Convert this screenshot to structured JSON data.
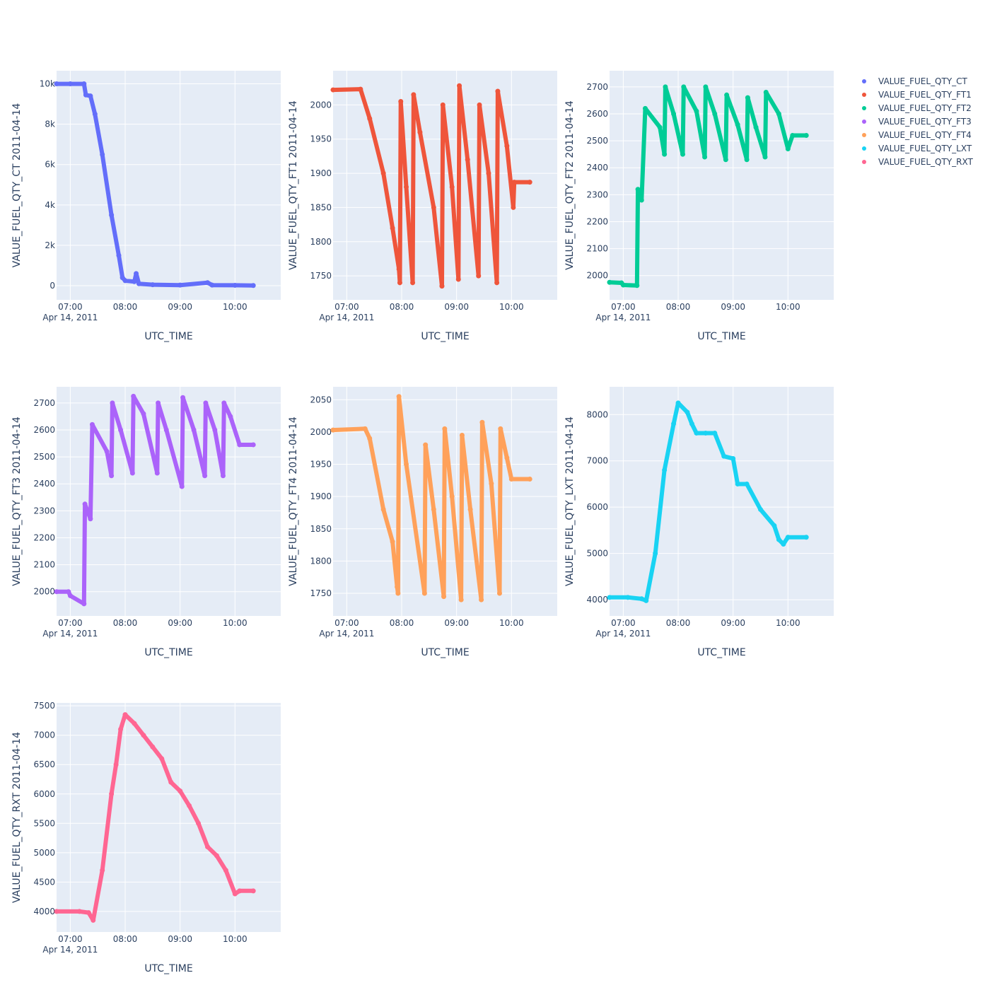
{
  "colors": {
    "plot_bg": "#E5ECF6",
    "grid": "#ffffff",
    "text": "#2a3f5f"
  },
  "chart_data": [
    {
      "type": "scatter",
      "series_name": "VALUE_FUEL_QTY_CT",
      "color": "#636EFA",
      "xlabel": "UTC_TIME",
      "ylabel": "VALUE_FUEL_QTY_CT 2011-04-14",
      "x_range": [
        "06:45",
        "10:50"
      ],
      "x_ticks": [
        "07:00",
        "08:00",
        "09:00",
        "10:00"
      ],
      "x_date_label": "Apr 14, 2011",
      "ylim": [
        -700,
        10650
      ],
      "y_ticks": [
        0,
        2000,
        4000,
        6000,
        8000,
        10000
      ],
      "y_tick_labels": [
        "0",
        "2k",
        "4k",
        "6k",
        "8k",
        "10k"
      ],
      "points": [
        [
          "06:45",
          10000
        ],
        [
          "07:00",
          10000
        ],
        [
          "07:15",
          10000
        ],
        [
          "07:17",
          9450
        ],
        [
          "07:22",
          9400
        ],
        [
          "07:27",
          8500
        ],
        [
          "07:35",
          6500
        ],
        [
          "07:45",
          3500
        ],
        [
          "07:53",
          1500
        ],
        [
          "07:57",
          400
        ],
        [
          "08:00",
          250
        ],
        [
          "08:10",
          200
        ],
        [
          "08:12",
          600
        ],
        [
          "08:15",
          100
        ],
        [
          "08:30",
          50
        ],
        [
          "09:00",
          30
        ],
        [
          "09:30",
          150
        ],
        [
          "09:35",
          30
        ],
        [
          "10:00",
          20
        ],
        [
          "10:20",
          10
        ]
      ]
    },
    {
      "type": "scatter",
      "series_name": "VALUE_FUEL_QTY_FT1",
      "color": "#EF553B",
      "xlabel": "UTC_TIME",
      "ylabel": "VALUE_FUEL_QTY_FT1 2011-04-14",
      "x_range": [
        "06:45",
        "10:50"
      ],
      "x_ticks": [
        "07:00",
        "08:00",
        "09:00",
        "10:00"
      ],
      "x_date_label": "Apr 14, 2011",
      "ylim": [
        1715,
        2050
      ],
      "y_ticks": [
        1750,
        1800,
        1850,
        1900,
        1950,
        2000
      ],
      "y_tick_labels": [
        "1750",
        "1800",
        "1850",
        "1900",
        "1950",
        "2000"
      ],
      "points": [
        [
          "06:45",
          2022
        ],
        [
          "07:15",
          2023
        ],
        [
          "07:25",
          1980
        ],
        [
          "07:40",
          1900
        ],
        [
          "07:50",
          1820
        ],
        [
          "07:57",
          1760
        ],
        [
          "07:58",
          1740
        ],
        [
          "07:59",
          2005
        ],
        [
          "08:05",
          1880
        ],
        [
          "08:12",
          1740
        ],
        [
          "08:13",
          2015
        ],
        [
          "08:20",
          1960
        ],
        [
          "08:35",
          1850
        ],
        [
          "08:44",
          1735
        ],
        [
          "08:45",
          2000
        ],
        [
          "08:55",
          1880
        ],
        [
          "09:02",
          1745
        ],
        [
          "09:03",
          2028
        ],
        [
          "09:12",
          1920
        ],
        [
          "09:24",
          1750
        ],
        [
          "09:25",
          2000
        ],
        [
          "09:35",
          1900
        ],
        [
          "09:44",
          1740
        ],
        [
          "09:45",
          2020
        ],
        [
          "09:55",
          1940
        ],
        [
          "10:02",
          1850
        ],
        [
          "10:03",
          1887
        ],
        [
          "10:20",
          1887
        ]
      ]
    },
    {
      "type": "scatter",
      "series_name": "VALUE_FUEL_QTY_FT2",
      "color": "#00CC96",
      "xlabel": "UTC_TIME",
      "ylabel": "VALUE_FUEL_QTY_FT2 2011-04-14",
      "x_range": [
        "06:45",
        "10:50"
      ],
      "x_ticks": [
        "07:00",
        "08:00",
        "09:00",
        "10:00"
      ],
      "x_date_label": "Apr 14, 2011",
      "ylim": [
        1910,
        2760
      ],
      "y_ticks": [
        2000,
        2100,
        2200,
        2300,
        2400,
        2500,
        2600,
        2700
      ],
      "y_tick_labels": [
        "2000",
        "2100",
        "2200",
        "2300",
        "2400",
        "2500",
        "2600",
        "2700"
      ],
      "points": [
        [
          "06:45",
          1975
        ],
        [
          "06:58",
          1973
        ],
        [
          "07:00",
          1965
        ],
        [
          "07:15",
          1963
        ],
        [
          "07:16",
          2320
        ],
        [
          "07:20",
          2280
        ],
        [
          "07:24",
          2620
        ],
        [
          "07:40",
          2550
        ],
        [
          "07:45",
          2450
        ],
        [
          "07:46",
          2700
        ],
        [
          "07:55",
          2600
        ],
        [
          "08:05",
          2450
        ],
        [
          "08:06",
          2700
        ],
        [
          "08:20",
          2610
        ],
        [
          "08:29",
          2440
        ],
        [
          "08:30",
          2700
        ],
        [
          "08:40",
          2600
        ],
        [
          "08:52",
          2430
        ],
        [
          "08:53",
          2670
        ],
        [
          "09:05",
          2560
        ],
        [
          "09:15",
          2430
        ],
        [
          "09:16",
          2660
        ],
        [
          "09:25",
          2550
        ],
        [
          "09:35",
          2440
        ],
        [
          "09:36",
          2680
        ],
        [
          "09:50",
          2600
        ],
        [
          "10:00",
          2470
        ],
        [
          "10:05",
          2520
        ],
        [
          "10:20",
          2520
        ]
      ]
    },
    {
      "type": "scatter",
      "series_name": "VALUE_FUEL_QTY_FT3",
      "color": "#AB63FA",
      "xlabel": "UTC_TIME",
      "ylabel": "VALUE_FUEL_QTY_FT3 2011-04-14",
      "x_range": [
        "06:45",
        "10:50"
      ],
      "x_ticks": [
        "07:00",
        "08:00",
        "09:00",
        "10:00"
      ],
      "x_date_label": "Apr 14, 2011",
      "ylim": [
        1910,
        2760
      ],
      "y_ticks": [
        2000,
        2100,
        2200,
        2300,
        2400,
        2500,
        2600,
        2700
      ],
      "y_tick_labels": [
        "2000",
        "2100",
        "2200",
        "2300",
        "2400",
        "2500",
        "2600",
        "2700"
      ],
      "points": [
        [
          "06:45",
          2000
        ],
        [
          "06:58",
          2000
        ],
        [
          "07:00",
          1985
        ],
        [
          "07:15",
          1955
        ],
        [
          "07:16",
          2325
        ],
        [
          "07:22",
          2270
        ],
        [
          "07:24",
          2620
        ],
        [
          "07:40",
          2520
        ],
        [
          "07:45",
          2430
        ],
        [
          "07:46",
          2700
        ],
        [
          "07:55",
          2600
        ],
        [
          "08:08",
          2440
        ],
        [
          "08:09",
          2725
        ],
        [
          "08:20",
          2660
        ],
        [
          "08:35",
          2440
        ],
        [
          "08:36",
          2700
        ],
        [
          "08:45",
          2600
        ],
        [
          "09:02",
          2390
        ],
        [
          "09:03",
          2720
        ],
        [
          "09:15",
          2600
        ],
        [
          "09:27",
          2430
        ],
        [
          "09:28",
          2700
        ],
        [
          "09:38",
          2600
        ],
        [
          "09:47",
          2430
        ],
        [
          "09:48",
          2700
        ],
        [
          "09:55",
          2650
        ],
        [
          "10:05",
          2545
        ],
        [
          "10:20",
          2545
        ]
      ]
    },
    {
      "type": "scatter",
      "series_name": "VALUE_FUEL_QTY_FT4",
      "color": "#FFA15A",
      "xlabel": "UTC_TIME",
      "ylabel": "VALUE_FUEL_QTY_FT4 2011-04-14",
      "x_range": [
        "06:45",
        "10:50"
      ],
      "x_ticks": [
        "07:00",
        "08:00",
        "09:00",
        "10:00"
      ],
      "x_date_label": "Apr 14, 2011",
      "ylim": [
        1715,
        2070
      ],
      "y_ticks": [
        1750,
        1800,
        1850,
        1900,
        1950,
        2000,
        2050
      ],
      "y_tick_labels": [
        "1750",
        "1800",
        "1850",
        "1900",
        "1950",
        "2000",
        "2050"
      ],
      "points": [
        [
          "06:45",
          2003
        ],
        [
          "07:20",
          2005
        ],
        [
          "07:25",
          1990
        ],
        [
          "07:40",
          1880
        ],
        [
          "07:50",
          1830
        ],
        [
          "07:55",
          1760
        ],
        [
          "07:56",
          1750
        ],
        [
          "07:57",
          2055
        ],
        [
          "08:05",
          1950
        ],
        [
          "08:25",
          1750
        ],
        [
          "08:26",
          1980
        ],
        [
          "08:35",
          1880
        ],
        [
          "08:46",
          1745
        ],
        [
          "08:47",
          2005
        ],
        [
          "08:55",
          1900
        ],
        [
          "09:05",
          1740
        ],
        [
          "09:06",
          1995
        ],
        [
          "09:15",
          1880
        ],
        [
          "09:27",
          1740
        ],
        [
          "09:28",
          2015
        ],
        [
          "09:38",
          1920
        ],
        [
          "09:47",
          1750
        ],
        [
          "09:48",
          2005
        ],
        [
          "09:55",
          1960
        ],
        [
          "10:00",
          1927
        ],
        [
          "10:20",
          1927
        ]
      ]
    },
    {
      "type": "scatter",
      "series_name": "VALUE_FUEL_QTY_LXT",
      "color": "#19D3F3",
      "xlabel": "UTC_TIME",
      "ylabel": "VALUE_FUEL_QTY_LXT 2011-04-14",
      "x_range": [
        "06:45",
        "10:50"
      ],
      "x_ticks": [
        "07:00",
        "08:00",
        "09:00",
        "10:00"
      ],
      "x_date_label": "Apr 14, 2011",
      "ylim": [
        3650,
        8600
      ],
      "y_ticks": [
        4000,
        5000,
        6000,
        7000,
        8000
      ],
      "y_tick_labels": [
        "4000",
        "5000",
        "6000",
        "7000",
        "8000"
      ],
      "points": [
        [
          "06:45",
          4050
        ],
        [
          "07:05",
          4050
        ],
        [
          "07:20",
          4020
        ],
        [
          "07:25",
          3980
        ],
        [
          "07:35",
          5000
        ],
        [
          "07:45",
          6800
        ],
        [
          "07:55",
          7800
        ],
        [
          "08:00",
          8250
        ],
        [
          "08:10",
          8050
        ],
        [
          "08:15",
          7800
        ],
        [
          "08:20",
          7600
        ],
        [
          "08:30",
          7600
        ],
        [
          "08:40",
          7600
        ],
        [
          "08:50",
          7100
        ],
        [
          "09:00",
          7050
        ],
        [
          "09:05",
          6500
        ],
        [
          "09:15",
          6500
        ],
        [
          "09:30",
          5950
        ],
        [
          "09:45",
          5600
        ],
        [
          "09:50",
          5300
        ],
        [
          "09:55",
          5200
        ],
        [
          "10:00",
          5350
        ],
        [
          "10:20",
          5350
        ]
      ]
    },
    {
      "type": "scatter",
      "series_name": "VALUE_FUEL_QTY_RXT",
      "color": "#FF6692",
      "xlabel": "UTC_TIME",
      "ylabel": "VALUE_FUEL_QTY_RXT 2011-04-14",
      "x_range": [
        "06:45",
        "10:50"
      ],
      "x_ticks": [
        "07:00",
        "08:00",
        "09:00",
        "10:00"
      ],
      "x_date_label": "Apr 14, 2011",
      "ylim": [
        3650,
        7550
      ],
      "y_ticks": [
        4000,
        4500,
        5000,
        5500,
        6000,
        6500,
        7000,
        7500
      ],
      "y_tick_labels": [
        "4000",
        "4500",
        "5000",
        "5500",
        "6000",
        "6500",
        "7000",
        "7500"
      ],
      "points": [
        [
          "06:45",
          4000
        ],
        [
          "07:10",
          4000
        ],
        [
          "07:20",
          3980
        ],
        [
          "07:25",
          3850
        ],
        [
          "07:35",
          4700
        ],
        [
          "07:45",
          6000
        ],
        [
          "07:50",
          6500
        ],
        [
          "07:55",
          7100
        ],
        [
          "08:00",
          7350
        ],
        [
          "08:10",
          7200
        ],
        [
          "08:20",
          7000
        ],
        [
          "08:30",
          6800
        ],
        [
          "08:40",
          6600
        ],
        [
          "08:50",
          6200
        ],
        [
          "09:00",
          6050
        ],
        [
          "09:10",
          5800
        ],
        [
          "09:20",
          5500
        ],
        [
          "09:30",
          5100
        ],
        [
          "09:40",
          4950
        ],
        [
          "09:50",
          4700
        ],
        [
          "10:00",
          4300
        ],
        [
          "10:05",
          4350
        ],
        [
          "10:20",
          4350
        ]
      ]
    }
  ]
}
